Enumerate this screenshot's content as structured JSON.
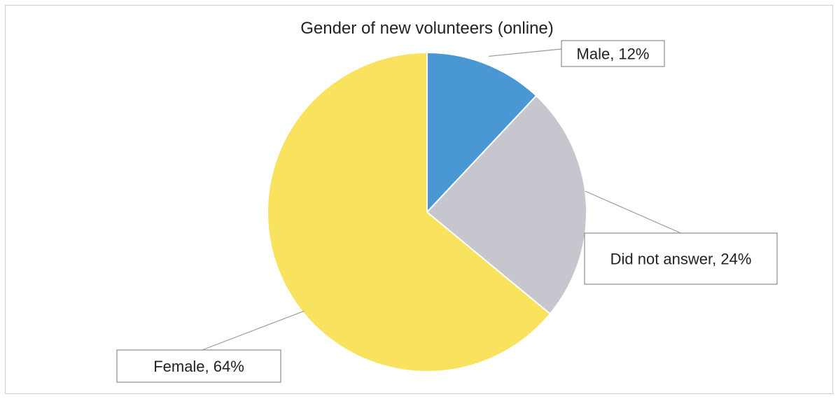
{
  "chart_data": {
    "type": "pie",
    "title": "Gender of new volunteers (online)",
    "categories": [
      "Male",
      "Did not answer",
      "Female"
    ],
    "values": [
      12,
      24,
      64
    ],
    "unit": "%",
    "labels": [
      "Male, 12%",
      "Did not answer, 24%",
      "Female, 64%"
    ],
    "colors": [
      "#4a98d3",
      "#c6c6cf",
      "#f8e25e"
    ],
    "start_angle": "12 o'clock",
    "direction": "clockwise",
    "label_style": "boxed callouts with leader lines",
    "legend": "none"
  }
}
